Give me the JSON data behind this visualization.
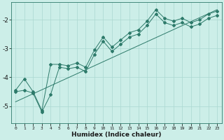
{
  "xlabel": "Humidex (Indice chaleur)",
  "ylabel": "",
  "xlim": [
    -0.5,
    23.5
  ],
  "ylim": [
    -5.6,
    -1.4
  ],
  "yticks": [
    -5,
    -4,
    -3,
    -2
  ],
  "xticks": [
    0,
    1,
    2,
    3,
    4,
    5,
    6,
    7,
    8,
    9,
    10,
    11,
    12,
    13,
    14,
    15,
    16,
    17,
    18,
    19,
    20,
    21,
    22,
    23
  ],
  "bg_color": "#cceee8",
  "line_color": "#2d7a6a",
  "line1_x": [
    0,
    1,
    2,
    3,
    4,
    5,
    6,
    7,
    8,
    9,
    10,
    11,
    12,
    13,
    14,
    15,
    16,
    17,
    18,
    19,
    20,
    21,
    22,
    23
  ],
  "line1_y": [
    -4.45,
    -4.05,
    -4.5,
    -5.15,
    -3.55,
    -3.55,
    -3.6,
    -3.5,
    -3.65,
    -3.05,
    -2.6,
    -2.95,
    -2.7,
    -2.45,
    -2.35,
    -2.05,
    -1.65,
    -1.95,
    -2.05,
    -1.95,
    -2.1,
    -2.0,
    -1.8,
    -1.7
  ],
  "line2_x": [
    0,
    1,
    2,
    3,
    4,
    5,
    6,
    7,
    8,
    9,
    10,
    11,
    12,
    13,
    14,
    15,
    16,
    17,
    18,
    19,
    20,
    21,
    22,
    23
  ],
  "line2_y": [
    -4.5,
    -4.45,
    -4.55,
    -5.2,
    -4.6,
    -3.65,
    -3.7,
    -3.65,
    -3.8,
    -3.2,
    -2.75,
    -3.1,
    -2.85,
    -2.6,
    -2.5,
    -2.2,
    -1.8,
    -2.1,
    -2.2,
    -2.1,
    -2.25,
    -2.15,
    -1.95,
    -1.85
  ],
  "line3_x": [
    0,
    23
  ],
  "line3_y": [
    -4.85,
    -1.65
  ]
}
